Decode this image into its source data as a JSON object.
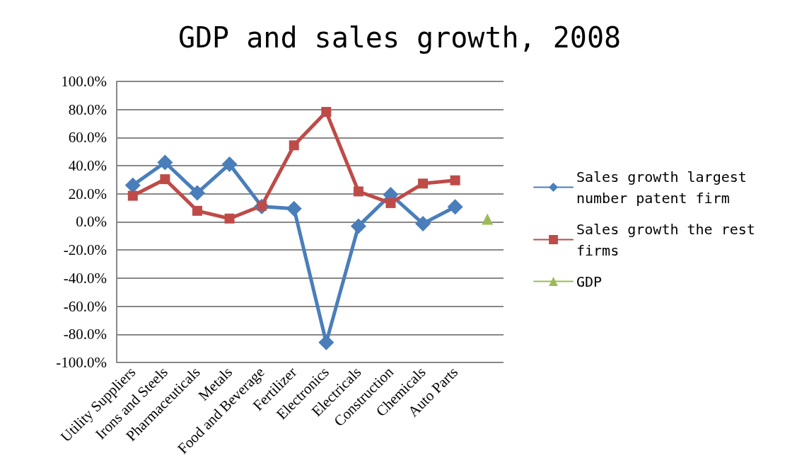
{
  "chart_data": {
    "type": "line",
    "title": "GDP and sales growth, 2008",
    "categories": [
      "Utility Suppliers",
      "Irons and Steels",
      "Pharmaceuticals",
      "Metals",
      "Food and Beverage",
      "Fertilizer",
      "Electronics",
      "Electricals",
      "Construction",
      "Chemicals",
      "Auto Parts",
      null
    ],
    "series": [
      {
        "name": "Sales growth largest number patent firm",
        "color": "#4a7ebb",
        "marker": "diamond",
        "values": [
          26.1,
          42.3,
          20.6,
          41.1,
          11.0,
          9.5,
          -85.8,
          -3.0,
          19.4,
          -1.2,
          10.7,
          null
        ]
      },
      {
        "name": "Sales growth the rest firms",
        "color": "#be4b48",
        "marker": "square",
        "values": [
          18.6,
          30.4,
          7.9,
          2.4,
          11.5,
          54.5,
          78.3,
          21.7,
          13.4,
          27.3,
          29.6,
          null
        ]
      },
      {
        "name": "GDP",
        "color": "#9bbb59",
        "marker": "triangle",
        "values": [
          null,
          null,
          null,
          null,
          null,
          null,
          null,
          null,
          null,
          null,
          null,
          2.0
        ]
      }
    ],
    "ylim": [
      -100,
      100
    ],
    "yticks": [
      {
        "value": -100,
        "label": "-100.0%"
      },
      {
        "value": -80,
        "label": "-80.0%"
      },
      {
        "value": -60,
        "label": "-60.0%"
      },
      {
        "value": -40,
        "label": "-40.0%"
      },
      {
        "value": -20,
        "label": "-20.0%"
      },
      {
        "value": 0,
        "label": "0.0%"
      },
      {
        "value": 20,
        "label": "20.0%"
      },
      {
        "value": 40,
        "label": "40.0%"
      },
      {
        "value": 60,
        "label": "60.0%"
      },
      {
        "value": 80,
        "label": "80.0%"
      },
      {
        "value": 100,
        "label": "100.0%"
      }
    ],
    "grid": "y",
    "legend": "right",
    "line_style": "solid"
  }
}
